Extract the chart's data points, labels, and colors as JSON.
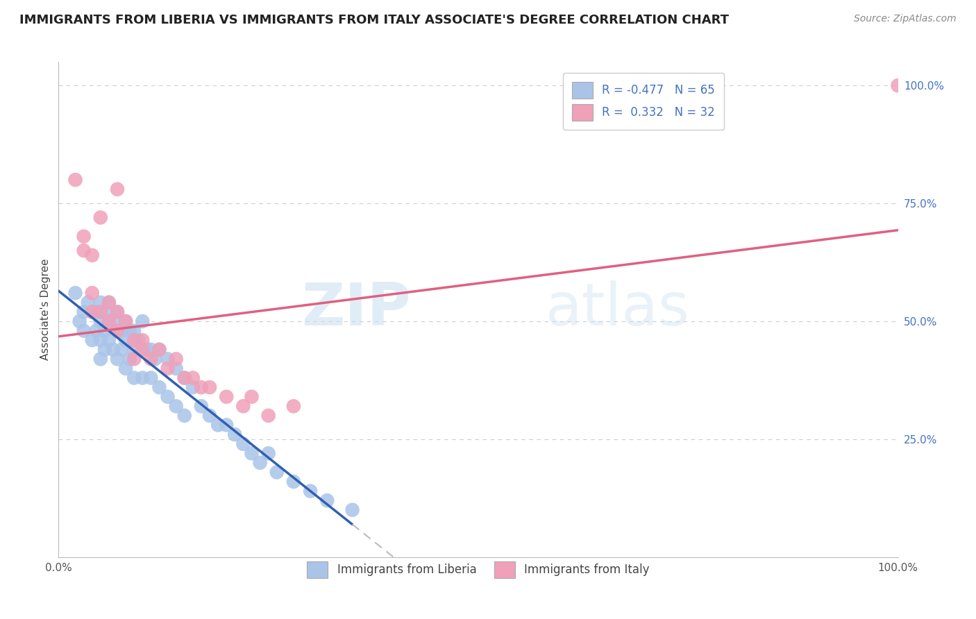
{
  "title": "IMMIGRANTS FROM LIBERIA VS IMMIGRANTS FROM ITALY ASSOCIATE'S DEGREE CORRELATION CHART",
  "source": "Source: ZipAtlas.com",
  "ylabel": "Associate's Degree",
  "xlim": [
    0.0,
    1.0
  ],
  "ylim": [
    0.0,
    1.05
  ],
  "ytick_positions": [
    0.25,
    0.5,
    0.75,
    1.0
  ],
  "ytick_labels": [
    "25.0%",
    "50.0%",
    "75.0%",
    "100.0%"
  ],
  "xtick_positions": [
    0.0,
    1.0
  ],
  "xtick_labels": [
    "0.0%",
    "100.0%"
  ],
  "grid_color": "#cccccc",
  "background_color": "#ffffff",
  "watermark_zip": "ZIP",
  "watermark_atlas": "atlas",
  "title_fontsize": 13,
  "source_fontsize": 10,
  "ylabel_fontsize": 11,
  "tick_fontsize": 11,
  "legend_fontsize": 12,
  "legend_text_color": "#4472c4",
  "ytick_color": "#4472c4",
  "series": [
    {
      "name": "Immigrants from Liberia",
      "scatter_color": "#aac4e8",
      "line_color": "#3060b0",
      "line_dash_color": "#aaaaaa",
      "R": -0.477,
      "N": 65,
      "x": [
        0.02,
        0.025,
        0.03,
        0.03,
        0.035,
        0.04,
        0.04,
        0.045,
        0.045,
        0.05,
        0.05,
        0.05,
        0.05,
        0.055,
        0.055,
        0.055,
        0.06,
        0.06,
        0.06,
        0.065,
        0.065,
        0.07,
        0.07,
        0.07,
        0.075,
        0.075,
        0.08,
        0.08,
        0.08,
        0.085,
        0.085,
        0.09,
        0.09,
        0.09,
        0.095,
        0.1,
        0.1,
        0.1,
        0.105,
        0.11,
        0.11,
        0.115,
        0.12,
        0.12,
        0.13,
        0.13,
        0.14,
        0.14,
        0.15,
        0.15,
        0.16,
        0.17,
        0.18,
        0.19,
        0.2,
        0.21,
        0.22,
        0.23,
        0.24,
        0.25,
        0.26,
        0.28,
        0.3,
        0.32,
        0.35
      ],
      "y": [
        0.56,
        0.5,
        0.52,
        0.48,
        0.54,
        0.52,
        0.46,
        0.52,
        0.48,
        0.54,
        0.5,
        0.46,
        0.42,
        0.52,
        0.48,
        0.44,
        0.54,
        0.5,
        0.46,
        0.5,
        0.44,
        0.52,
        0.48,
        0.42,
        0.48,
        0.44,
        0.5,
        0.46,
        0.4,
        0.48,
        0.42,
        0.48,
        0.44,
        0.38,
        0.46,
        0.5,
        0.44,
        0.38,
        0.44,
        0.44,
        0.38,
        0.42,
        0.44,
        0.36,
        0.42,
        0.34,
        0.4,
        0.32,
        0.38,
        0.3,
        0.36,
        0.32,
        0.3,
        0.28,
        0.28,
        0.26,
        0.24,
        0.22,
        0.2,
        0.22,
        0.18,
        0.16,
        0.14,
        0.12,
        0.1
      ]
    },
    {
      "name": "Immigrants from Italy",
      "scatter_color": "#f0a0b8",
      "line_color": "#e06080",
      "R": 0.332,
      "N": 32,
      "x": [
        0.02,
        0.03,
        0.04,
        0.04,
        0.05,
        0.06,
        0.06,
        0.07,
        0.07,
        0.08,
        0.09,
        0.09,
        0.1,
        0.11,
        0.12,
        0.13,
        0.14,
        0.15,
        0.16,
        0.17,
        0.18,
        0.2,
        0.22,
        0.23,
        0.25,
        0.28,
        0.1,
        0.07,
        0.05,
        0.04,
        0.03,
        1.0
      ],
      "y": [
        0.8,
        0.65,
        0.56,
        0.52,
        0.52,
        0.54,
        0.5,
        0.52,
        0.48,
        0.5,
        0.46,
        0.42,
        0.46,
        0.42,
        0.44,
        0.4,
        0.42,
        0.38,
        0.38,
        0.36,
        0.36,
        0.34,
        0.32,
        0.34,
        0.3,
        0.32,
        0.44,
        0.78,
        0.72,
        0.64,
        0.68,
        1.0
      ]
    }
  ]
}
